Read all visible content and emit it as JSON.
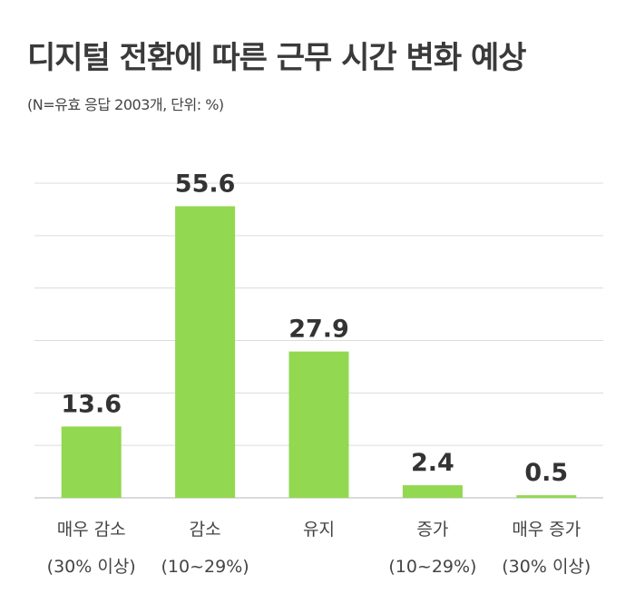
{
  "chart_data": {
    "type": "bar",
    "title": "디지털 전환에 따른 근무 시간 변화 예상",
    "subtitle": "(N=유효 응답 2003개, 단위: %)",
    "categories": [
      [
        "매우 감소",
        "(30% 이상)"
      ],
      [
        "감소",
        "(10~29%)"
      ],
      [
        "유지",
        ""
      ],
      [
        "증가",
        "(10~29%)"
      ],
      [
        "매우 증가",
        "(30% 이상)"
      ]
    ],
    "values": [
      13.6,
      55.6,
      27.9,
      2.4,
      0.5
    ],
    "value_labels": [
      "13.6",
      "55.6",
      "27.9",
      "2.4",
      "0.5"
    ],
    "ylim": [
      0,
      60
    ],
    "grid": true,
    "bar_color": "#92d850",
    "grid_color": "#dcdcdc"
  }
}
